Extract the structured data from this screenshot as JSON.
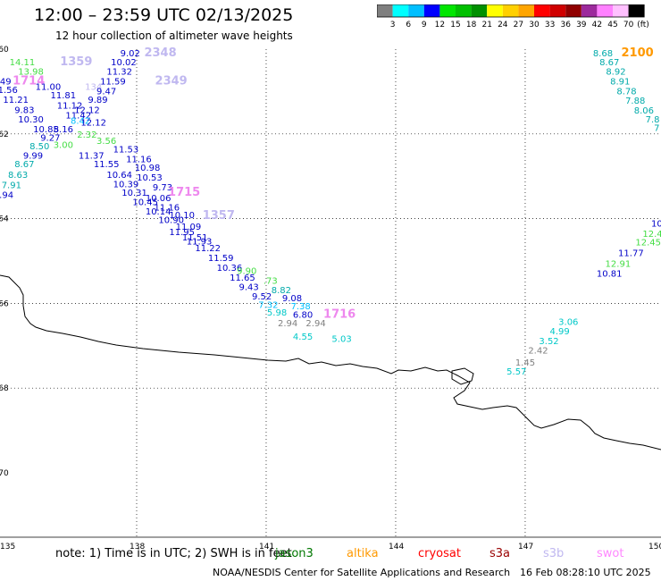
{
  "header": {
    "title": "12:00 – 23:59 UTC 02/13/2025",
    "subtitle": "12 hour collection of altimeter wave heights"
  },
  "colorbar": {
    "unit": "(ft)",
    "ticks": [
      "3",
      "6",
      "9",
      "12",
      "15",
      "18",
      "21",
      "24",
      "27",
      "30",
      "33",
      "36",
      "39",
      "42",
      "45",
      "70"
    ],
    "colors": [
      "#7f7f7f",
      "#00ffff",
      "#00bfff",
      "#0000ff",
      "#00e600",
      "#00c000",
      "#009000",
      "#ffff00",
      "#ffd000",
      "#ffa500",
      "#ff0000",
      "#d00000",
      "#900000",
      "#9c2a9c",
      "#ff80ff",
      "#ffc0ff",
      "#000000"
    ]
  },
  "map": {
    "lon_ticks": [
      "135",
      "138",
      "141",
      "144",
      "147",
      "150"
    ],
    "lat_ticks": [
      "-60",
      "-62",
      "-64",
      "-66",
      "-68",
      "-70"
    ]
  },
  "track_labels": [
    {
      "t": "9.02",
      "c": "#0000c8",
      "lon": 137.85,
      "lat": -60.08
    },
    {
      "t": "2348",
      "c": "#c0b8f0",
      "lon": 138.55,
      "lat": -60.08,
      "big": true
    },
    {
      "t": "14.11",
      "c": "#44dd44",
      "lon": 135.35,
      "lat": -60.3
    },
    {
      "t": "1359",
      "c": "#c0b8f0",
      "lon": 136.6,
      "lat": -60.3,
      "big": true
    },
    {
      "t": "10.02",
      "c": "#0000c8",
      "lon": 137.7,
      "lat": -60.3
    },
    {
      "t": "13.98",
      "c": "#44dd44",
      "lon": 135.55,
      "lat": -60.52
    },
    {
      "t": "11.32",
      "c": "#0000c8",
      "lon": 137.6,
      "lat": -60.52
    },
    {
      "t": "11.49",
      "c": "#0000c8",
      "lon": 134.8,
      "lat": -60.75
    },
    {
      "t": "1714",
      "c": "#ee88ee",
      "lon": 135.5,
      "lat": -60.75,
      "big": true
    },
    {
      "t": "11.59",
      "c": "#0000c8",
      "lon": 137.45,
      "lat": -60.75
    },
    {
      "t": "2349",
      "c": "#c0b8f0",
      "lon": 138.8,
      "lat": -60.75,
      "big": true
    },
    {
      "t": "11.56",
      "c": "#0000c8",
      "lon": 134.95,
      "lat": -60.95
    },
    {
      "t": "11.00",
      "c": "#0000c8",
      "lon": 135.95,
      "lat": -60.88
    },
    {
      "t": "134",
      "c": "#c0b8f0",
      "lon": 137.0,
      "lat": -60.88
    },
    {
      "t": "9.47",
      "c": "#0000c8",
      "lon": 137.3,
      "lat": -60.98
    },
    {
      "t": "11.21",
      "c": "#0000c8",
      "lon": 135.2,
      "lat": -61.18
    },
    {
      "t": "11.81",
      "c": "#0000c8",
      "lon": 136.3,
      "lat": -61.08
    },
    {
      "t": "9.89",
      "c": "#0000c8",
      "lon": 137.1,
      "lat": -61.18
    },
    {
      "t": "9.83",
      "c": "#0000c8",
      "lon": 135.4,
      "lat": -61.42
    },
    {
      "t": "11.12",
      "c": "#0000c8",
      "lon": 136.45,
      "lat": -61.32
    },
    {
      "t": "12.12",
      "c": "#0000c8",
      "lon": 136.85,
      "lat": -61.42
    },
    {
      "t": "10.30",
      "c": "#0000c8",
      "lon": 135.55,
      "lat": -61.65
    },
    {
      "t": "11.42",
      "c": "#0000c8",
      "lon": 136.65,
      "lat": -61.55
    },
    {
      "t": "8.42",
      "c": "#00bfff",
      "lon": 136.7,
      "lat": -61.68
    },
    {
      "t": "12.12",
      "c": "#0000c8",
      "lon": 137.0,
      "lat": -61.72
    },
    {
      "t": "10.85",
      "c": "#0000c8",
      "lon": 135.9,
      "lat": -61.88
    },
    {
      "t": "8.16",
      "c": "#0000c8",
      "lon": 136.3,
      "lat": -61.88
    },
    {
      "t": "2.32",
      "c": "#44dd44",
      "lon": 136.85,
      "lat": -62.0
    },
    {
      "t": "9.27",
      "c": "#0000c8",
      "lon": 136.0,
      "lat": -62.08
    },
    {
      "t": "3.56",
      "c": "#44dd44",
      "lon": 137.3,
      "lat": -62.15
    },
    {
      "t": "8.50",
      "c": "#00aaaa",
      "lon": 135.75,
      "lat": -62.28
    },
    {
      "t": "3.00",
      "c": "#44dd44",
      "lon": 136.3,
      "lat": -62.25
    },
    {
      "t": "11.53",
      "c": "#0000c8",
      "lon": 137.75,
      "lat": -62.35
    },
    {
      "t": "9.99",
      "c": "#0000c8",
      "lon": 135.6,
      "lat": -62.5
    },
    {
      "t": "11.37",
      "c": "#0000c8",
      "lon": 136.95,
      "lat": -62.5
    },
    {
      "t": "11.16",
      "c": "#0000c8",
      "lon": 138.05,
      "lat": -62.58
    },
    {
      "t": "8.67",
      "c": "#00aaaa",
      "lon": 135.4,
      "lat": -62.7
    },
    {
      "t": "11.55",
      "c": "#0000c8",
      "lon": 137.3,
      "lat": -62.7
    },
    {
      "t": "10.98",
      "c": "#0000c8",
      "lon": 138.25,
      "lat": -62.78
    },
    {
      "t": "8.63",
      "c": "#00aaaa",
      "lon": 135.25,
      "lat": -62.95
    },
    {
      "t": "10.64",
      "c": "#0000c8",
      "lon": 137.6,
      "lat": -62.95
    },
    {
      "t": "10.53",
      "c": "#0000c8",
      "lon": 138.3,
      "lat": -63.02
    },
    {
      "t": "7.91",
      "c": "#00aaaa",
      "lon": 135.1,
      "lat": -63.2
    },
    {
      "t": "10.39",
      "c": "#0000c8",
      "lon": 137.75,
      "lat": -63.18
    },
    {
      "t": "9.73",
      "c": "#0000c8",
      "lon": 138.6,
      "lat": -63.25
    },
    {
      "t": "10.94",
      "c": "#0000c8",
      "lon": 134.85,
      "lat": -63.43
    },
    {
      "t": "10.31",
      "c": "#0000c8",
      "lon": 137.95,
      "lat": -63.38
    },
    {
      "t": "1715",
      "c": "#ee88ee",
      "lon": 139.1,
      "lat": -63.38,
      "big": true
    },
    {
      "t": "10.06",
      "c": "#0000c8",
      "lon": 138.5,
      "lat": -63.5
    },
    {
      "t": "10.45",
      "c": "#0000c8",
      "lon": 138.2,
      "lat": -63.6
    },
    {
      "t": "11.16",
      "c": "#0000c8",
      "lon": 138.7,
      "lat": -63.72
    },
    {
      "t": "10.14",
      "c": "#0000c8",
      "lon": 138.5,
      "lat": -63.82
    },
    {
      "t": "10.10",
      "c": "#0000c8",
      "lon": 139.05,
      "lat": -63.9
    },
    {
      "t": "1357",
      "c": "#c0b8f0",
      "lon": 139.9,
      "lat": -63.92,
      "big": true
    },
    {
      "t": "10.90",
      "c": "#0000c8",
      "lon": 138.8,
      "lat": -64.02
    },
    {
      "t": "11.09",
      "c": "#0000c8",
      "lon": 139.2,
      "lat": -64.18
    },
    {
      "t": "11.95",
      "c": "#0000c8",
      "lon": 139.05,
      "lat": -64.3
    },
    {
      "t": "11.51",
      "c": "#0000c8",
      "lon": 139.35,
      "lat": -64.43
    },
    {
      "t": "11.93",
      "c": "#0000c8",
      "lon": 139.45,
      "lat": -64.53
    },
    {
      "t": "11.22",
      "c": "#0000c8",
      "lon": 139.65,
      "lat": -64.68
    },
    {
      "t": "11.59",
      "c": "#0000c8",
      "lon": 139.95,
      "lat": -64.92
    },
    {
      "t": "10.36",
      "c": "#0000c8",
      "lon": 140.15,
      "lat": -65.15
    },
    {
      "t": "9.90",
      "c": "#44dd44",
      "lon": 140.55,
      "lat": -65.22
    },
    {
      "t": "11.65",
      "c": "#0000c8",
      "lon": 140.45,
      "lat": -65.38
    },
    {
      "t": ".73",
      "c": "#44dd44",
      "lon": 141.1,
      "lat": -65.45
    },
    {
      "t": "9.43",
      "c": "#0000c8",
      "lon": 140.6,
      "lat": -65.6
    },
    {
      "t": "9.52",
      "c": "#0000c8",
      "lon": 140.9,
      "lat": -65.82
    },
    {
      "t": "8.82",
      "c": "#00aaaa",
      "lon": 141.35,
      "lat": -65.68
    },
    {
      "t": "9.08",
      "c": "#0000c8",
      "lon": 141.6,
      "lat": -65.87
    },
    {
      "t": "7.32",
      "c": "#00bfff",
      "lon": 141.05,
      "lat": -66.02
    },
    {
      "t": "7.38",
      "c": "#00bfff",
      "lon": 141.8,
      "lat": -66.05
    },
    {
      "t": "5.98",
      "c": "#00c8c8",
      "lon": 141.25,
      "lat": -66.2
    },
    {
      "t": "6.80",
      "c": "#0000c8",
      "lon": 141.85,
      "lat": -66.26
    },
    {
      "t": "1716",
      "c": "#ee88ee",
      "lon": 142.7,
      "lat": -66.26,
      "big": true
    },
    {
      "t": "2.94",
      "c": "#7f7f7f",
      "lon": 141.5,
      "lat": -66.46
    },
    {
      "t": "2.94",
      "c": "#7f7f7f",
      "lon": 142.15,
      "lat": -66.46
    },
    {
      "t": "4.55",
      "c": "#00c8c8",
      "lon": 141.85,
      "lat": -66.77
    },
    {
      "t": "5.03",
      "c": "#00c8c8",
      "lon": 142.75,
      "lat": -66.82
    },
    {
      "t": "3.06",
      "c": "#00c8c8",
      "lon": 148.0,
      "lat": -66.42
    },
    {
      "t": "4.99",
      "c": "#00c8c8",
      "lon": 147.8,
      "lat": -66.65
    },
    {
      "t": "3.52",
      "c": "#00c8c8",
      "lon": 147.55,
      "lat": -66.88
    },
    {
      "t": "2.42",
      "c": "#7f7f7f",
      "lon": 147.3,
      "lat": -67.1
    },
    {
      "t": "1.45",
      "c": "#7f7f7f",
      "lon": 147.0,
      "lat": -67.38
    },
    {
      "t": "5.57",
      "c": "#00c8c8",
      "lon": 146.8,
      "lat": -67.6
    },
    {
      "t": "8.68",
      "c": "#00aaaa",
      "lon": 148.8,
      "lat": -60.08
    },
    {
      "t": "2100",
      "c": "#ff9900",
      "lon": 149.6,
      "lat": -60.08,
      "big": true
    },
    {
      "t": "8.67",
      "c": "#00aaaa",
      "lon": 148.95,
      "lat": -60.3
    },
    {
      "t": "8.92",
      "c": "#00aaaa",
      "lon": 149.1,
      "lat": -60.52
    },
    {
      "t": "8.91",
      "c": "#00aaaa",
      "lon": 149.2,
      "lat": -60.75
    },
    {
      "t": "8.78",
      "c": "#00aaaa",
      "lon": 149.35,
      "lat": -60.98
    },
    {
      "t": "7.88",
      "c": "#00aaaa",
      "lon": 149.55,
      "lat": -61.2
    },
    {
      "t": "8.06",
      "c": "#00aaaa",
      "lon": 149.75,
      "lat": -61.43
    },
    {
      "t": "7.8",
      "c": "#00aaaa",
      "lon": 149.95,
      "lat": -61.65
    },
    {
      "t": "7",
      "c": "#00aaaa",
      "lon": 150.05,
      "lat": -61.85
    },
    {
      "t": "10",
      "c": "#0000c8",
      "lon": 150.05,
      "lat": -64.1
    },
    {
      "t": "12.4",
      "c": "#44dd44",
      "lon": 149.95,
      "lat": -64.35
    },
    {
      "t": "12.45",
      "c": "#44dd44",
      "lon": 149.85,
      "lat": -64.55
    },
    {
      "t": "11.77",
      "c": "#0000c8",
      "lon": 149.45,
      "lat": -64.8
    },
    {
      "t": "12.91",
      "c": "#44dd44",
      "lon": 149.15,
      "lat": -65.05
    },
    {
      "t": "10.81",
      "c": "#0000c8",
      "lon": 148.95,
      "lat": -65.28
    }
  ],
  "note": "note: 1) Time is in UTC; 2) SWH is in feet",
  "satellites": [
    {
      "name": "jason3",
      "color": "#007700"
    },
    {
      "name": "altika",
      "color": "#ff9900"
    },
    {
      "name": "cryosat",
      "color": "#ff0000"
    },
    {
      "name": "s3a",
      "color": "#990000"
    },
    {
      "name": "s3b",
      "color": "#c0b8f0"
    },
    {
      "name": "swot",
      "color": "#ff88ff"
    }
  ],
  "footer": {
    "center": "NOAA/NESDIS Center for Satellite Applications and Research",
    "date": "16 Feb 08:28:10 UTC 2025"
  }
}
